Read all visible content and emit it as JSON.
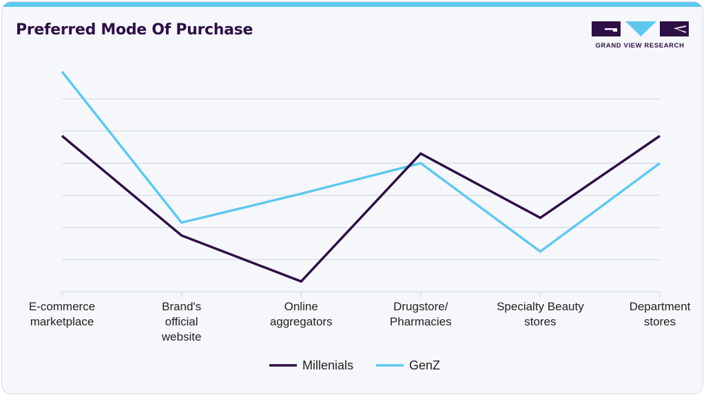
{
  "header": {
    "title": "Preferred Mode Of Purchase",
    "logo_text": "GRAND VIEW RESEARCH"
  },
  "colors": {
    "accent_bar": "#5fc8ee",
    "title": "#2e0f45",
    "millenials": "#2e0f45",
    "genz": "#5fc8ee",
    "gridline": "#cfd4dc"
  },
  "chart_data": {
    "type": "line",
    "title": "Preferred Mode Of Purchase",
    "xlabel": "",
    "ylabel": "",
    "ylim": [
      0,
      7
    ],
    "grid": true,
    "legend_position": "bottom",
    "categories": [
      [
        "E-commerce",
        "marketplace"
      ],
      [
        "Brand's",
        "official",
        "website"
      ],
      [
        "Online",
        "aggregators"
      ],
      [
        "Drugstore/",
        "Pharmacies"
      ],
      [
        "Specialty Beauty",
        "stores"
      ],
      [
        "Department",
        "stores"
      ]
    ],
    "series": [
      {
        "name": "Millenials",
        "color": "#2e0f45",
        "values": [
          4.85,
          1.75,
          0.32,
          4.3,
          2.3,
          4.85
        ]
      },
      {
        "name": "GenZ",
        "color": "#5fc8ee",
        "values": [
          6.85,
          2.15,
          3.05,
          4.0,
          1.25,
          4.0
        ]
      }
    ]
  }
}
